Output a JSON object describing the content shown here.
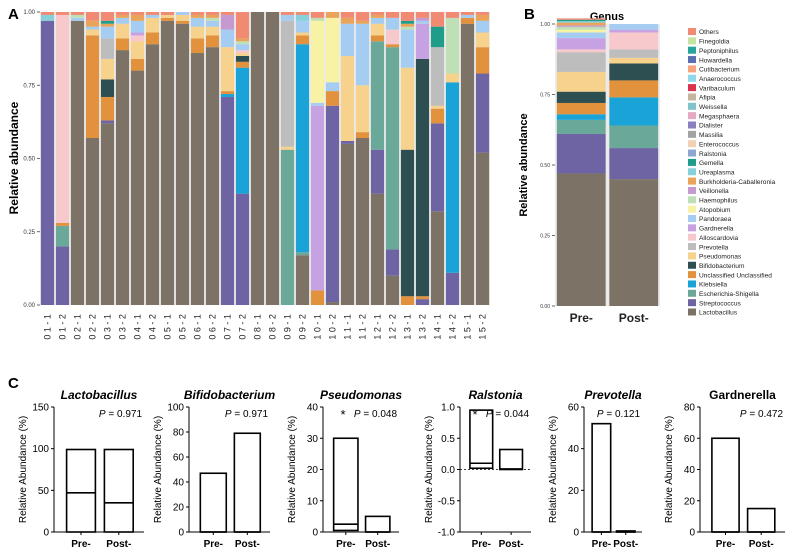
{
  "panels": {
    "a": "A",
    "b": "B",
    "c": "C"
  },
  "genus_palette": [
    {
      "name": "Lactobacillus",
      "color": "#7c7366"
    },
    {
      "name": "Streptococcus",
      "color": "#6e64a3"
    },
    {
      "name": "Escherichia-Shigella",
      "color": "#6aa99a"
    },
    {
      "name": "Klebsiella",
      "color": "#1aa3d6"
    },
    {
      "name": "Unclassified Unclassified",
      "color": "#e2913c"
    },
    {
      "name": "Bifidobacterium",
      "color": "#2d4f52"
    },
    {
      "name": "Pseudomonas",
      "color": "#f6d28c"
    },
    {
      "name": "Prevotella",
      "color": "#bdbdbd"
    },
    {
      "name": "Alloscardovia",
      "color": "#f7c9cc"
    },
    {
      "name": "Gardnerella",
      "color": "#c6a2e3"
    },
    {
      "name": "Pandoraea",
      "color": "#a4cdf1"
    },
    {
      "name": "Atopobium",
      "color": "#f7f2a4"
    },
    {
      "name": "Haemophilus",
      "color": "#bfe0b6"
    },
    {
      "name": "Veillonella",
      "color": "#c59ad1"
    },
    {
      "name": "Burkholderia-Caballeronia",
      "color": "#e9a35a"
    },
    {
      "name": "Ureaplasma",
      "color": "#86d0dc"
    },
    {
      "name": "Gemella",
      "color": "#1f9c8a"
    },
    {
      "name": "Ralstonia",
      "color": "#8fa7cf"
    },
    {
      "name": "Massilia",
      "color": "#a3a3a3"
    },
    {
      "name": "Enterococcus",
      "color": "#f2d0b2"
    },
    {
      "name": "Dialister",
      "color": "#8a7fbf"
    },
    {
      "name": "Megasphaera",
      "color": "#e7a8c4"
    },
    {
      "name": "Weissella",
      "color": "#80c4c9"
    },
    {
      "name": "Afipia",
      "color": "#c4b69e"
    },
    {
      "name": "Varibaculum",
      "color": "#d9344b"
    },
    {
      "name": "Anaerococcus",
      "color": "#8fd9ea"
    },
    {
      "name": "Cutibacterium",
      "color": "#f6a57d"
    },
    {
      "name": "Howardella",
      "color": "#5a6fb0"
    },
    {
      "name": "Peptoniphilus",
      "color": "#26a69a"
    },
    {
      "name": "Finegoldia",
      "color": "#c7e3a1"
    },
    {
      "name": "Others",
      "color": "#f08a72"
    }
  ],
  "chart_data": [
    {
      "type": "stacked-bar",
      "panel": "A",
      "title": "",
      "xlabel": "",
      "ylabel": "Relative abundance",
      "ylim": [
        0,
        1
      ],
      "yticks": [
        "0.00",
        "0.25",
        "0.50",
        "0.75",
        "1.00"
      ],
      "categories": [
        "0 1 - 1",
        "0 1 - 2",
        "0 2 - 1",
        "0 2 - 2",
        "0 3 - 1",
        "0 3 - 2",
        "0 4 - 1",
        "0 4 - 2",
        "0 5 - 1",
        "0 5 - 2",
        "0 6 - 1",
        "0 6 - 2",
        "0 7 - 1",
        "0 7 - 2",
        "0 8 - 1",
        "0 8 - 2",
        "0 9 - 1",
        "0 9 - 2",
        "1 0 - 1",
        "1 0 - 2",
        "1 1 - 1",
        "1 1 - 2",
        "1 2 - 1",
        "1 2 - 2",
        "1 3 - 1",
        "1 3 - 2",
        "1 4 - 1",
        "1 4 - 2",
        "1 5 - 1",
        "1 5 - 2"
      ],
      "stack_order": [
        "Lactobacillus",
        "Streptococcus",
        "Escherichia-Shigella",
        "Klebsiella",
        "Unclassified Unclassified",
        "Bifidobacterium",
        "Pseudomonas",
        "Prevotella",
        "Alloscardovia",
        "Gardnerella",
        "Pandoraea",
        "Atopobium",
        "Haemophilus",
        "Veillonella",
        "Burkholderia-Caballeronia",
        "Ureaplasma",
        "Gemella",
        "Others"
      ],
      "samples": [
        [
          0,
          0.97,
          0,
          0,
          0,
          0,
          0,
          0,
          0,
          0,
          0,
          0,
          0,
          0,
          0,
          0.02,
          0,
          0.01
        ],
        [
          0,
          0.2,
          0.07,
          0,
          0.01,
          0,
          0,
          0,
          0.71,
          0,
          0,
          0,
          0,
          0,
          0,
          0,
          0,
          0.01
        ],
        [
          0.97,
          0,
          0,
          0,
          0,
          0,
          0,
          0,
          0,
          0,
          0.01,
          0,
          0.01,
          0,
          0,
          0,
          0,
          0.01
        ],
        [
          0.57,
          0,
          0,
          0,
          0.35,
          0,
          0.02,
          0,
          0,
          0,
          0.01,
          0,
          0,
          0,
          0.02,
          0,
          0,
          0.03
        ],
        [
          0.62,
          0.01,
          0,
          0,
          0.08,
          0.06,
          0.07,
          0.07,
          0,
          0,
          0.04,
          0,
          0,
          0,
          0.01,
          0,
          0.01,
          0.03
        ],
        [
          0.87,
          0,
          0,
          0,
          0.04,
          0,
          0.05,
          0,
          0,
          0,
          0.02,
          0,
          0,
          0,
          0.01,
          0,
          0,
          0.01
        ],
        [
          0.8,
          0,
          0,
          0,
          0.04,
          0,
          0.06,
          0,
          0.02,
          0.01,
          0.04,
          0,
          0,
          0,
          0.02,
          0,
          0,
          0.01
        ],
        [
          0.89,
          0,
          0,
          0,
          0.04,
          0,
          0.05,
          0,
          0,
          0,
          0.01,
          0,
          0,
          0,
          0,
          0,
          0,
          0.01
        ],
        [
          0.97,
          0,
          0,
          0,
          0.01,
          0,
          0.01,
          0,
          0,
          0,
          0,
          0,
          0,
          0,
          0,
          0,
          0,
          0.01
        ],
        [
          0.96,
          0,
          0,
          0,
          0.01,
          0,
          0.02,
          0,
          0,
          0,
          0.01,
          0,
          0,
          0,
          0,
          0,
          0,
          0
        ],
        [
          0.86,
          0,
          0,
          0,
          0.05,
          0,
          0.04,
          0,
          0,
          0,
          0.03,
          0,
          0,
          0,
          0.01,
          0,
          0,
          0.01
        ],
        [
          0.88,
          0,
          0,
          0,
          0.04,
          0,
          0.03,
          0,
          0,
          0,
          0.02,
          0,
          0.01,
          0,
          0.01,
          0,
          0,
          0.01
        ],
        [
          0,
          0.71,
          0,
          0.01,
          0.01,
          0,
          0.15,
          0,
          0,
          0,
          0.06,
          0,
          0,
          0.05,
          0,
          0,
          0,
          0.01
        ],
        [
          0,
          0.38,
          0,
          0.43,
          0.02,
          0.02,
          0.01,
          0,
          0.01,
          0,
          0.02,
          0,
          0.01,
          0,
          0.01,
          0,
          0,
          0.09
        ],
        [
          1.0,
          0,
          0,
          0,
          0,
          0,
          0,
          0,
          0,
          0,
          0,
          0,
          0,
          0,
          0,
          0,
          0,
          0
        ],
        [
          1.0,
          0,
          0,
          0,
          0,
          0,
          0,
          0,
          0,
          0,
          0,
          0,
          0,
          0,
          0,
          0,
          0,
          0
        ],
        [
          0,
          0,
          0.53,
          0,
          0,
          0,
          0.01,
          0.43,
          0,
          0,
          0.02,
          0,
          0,
          0,
          0,
          0,
          0,
          0.01
        ],
        [
          0.17,
          0,
          0.01,
          0.71,
          0.03,
          0,
          0.01,
          0,
          0,
          0,
          0.04,
          0,
          0,
          0,
          0,
          0.02,
          0,
          0.01
        ],
        [
          0,
          0,
          0,
          0,
          0.05,
          0,
          0,
          0,
          0,
          0.63,
          0.01,
          0.28,
          0.01,
          0,
          0,
          0,
          0,
          0.02
        ],
        [
          0.01,
          0.67,
          0,
          0,
          0.05,
          0,
          0,
          0,
          0,
          0,
          0.03,
          0.22,
          0,
          0,
          0.02,
          0,
          0,
          0
        ],
        [
          0.55,
          0.01,
          0,
          0,
          0,
          0,
          0.29,
          0,
          0,
          0,
          0.11,
          0,
          0,
          0,
          0.02,
          0,
          0,
          0.02
        ],
        [
          0.57,
          0,
          0,
          0,
          0.02,
          0,
          0.16,
          0,
          0,
          0,
          0.21,
          0,
          0,
          0,
          0.01,
          0,
          0,
          0.03
        ],
        [
          0.38,
          0.15,
          0.37,
          0,
          0.02,
          0,
          0.04,
          0,
          0,
          0,
          0.02,
          0,
          0,
          0,
          0.01,
          0,
          0,
          0.01
        ],
        [
          0.1,
          0.09,
          0.69,
          0,
          0.01,
          0,
          0,
          0,
          0.05,
          0,
          0.04,
          0,
          0,
          0,
          0,
          0,
          0,
          0.02
        ],
        [
          0,
          0,
          0,
          0,
          0.03,
          0.5,
          0.28,
          0,
          0,
          0,
          0.13,
          0,
          0.01,
          0,
          0.01,
          0,
          0.01,
          0.03
        ],
        [
          0,
          0.02,
          0,
          0,
          0.01,
          0.81,
          0,
          0,
          0,
          0.12,
          0.01,
          0,
          0,
          0.01,
          0,
          0,
          0,
          0.02
        ],
        [
          0.32,
          0.3,
          0,
          0,
          0.05,
          0,
          0.01,
          0.2,
          0,
          0,
          0,
          0,
          0,
          0,
          0,
          0,
          0.07,
          0.05
        ],
        [
          0,
          0.11,
          0,
          0.65,
          0,
          0,
          0.03,
          0,
          0,
          0,
          0,
          0,
          0.19,
          0,
          0,
          0,
          0,
          0.02
        ],
        [
          0.96,
          0,
          0,
          0,
          0.02,
          0,
          0,
          0,
          0,
          0,
          0.01,
          0,
          0,
          0,
          0,
          0,
          0,
          0.01
        ],
        [
          0.52,
          0.27,
          0,
          0,
          0.09,
          0,
          0.05,
          0,
          0,
          0,
          0.04,
          0,
          0,
          0,
          0.02,
          0,
          0,
          0.01
        ]
      ]
    },
    {
      "type": "stacked-bar",
      "panel": "B",
      "title": "Genus",
      "ylabel": "Relative abundance",
      "ylim": [
        0,
        1
      ],
      "yticks": [
        "0.00",
        "0.25",
        "0.50",
        "0.75",
        "1.00"
      ],
      "categories": [
        "Pre-",
        "Post-"
      ],
      "stack_order": [
        "Lactobacillus",
        "Streptococcus",
        "Escherichia-Shigella",
        "Klebsiella",
        "Unclassified Unclassified",
        "Bifidobacterium",
        "Pseudomonas",
        "Prevotella",
        "Alloscardovia",
        "Gardnerella",
        "Pandoraea",
        "Atopobium",
        "Haemophilus",
        "Veillonella",
        "Burkholderia-Caballeronia",
        "Ureaplasma",
        "Gemella",
        "Others"
      ],
      "samples": [
        [
          0.47,
          0.14,
          0.05,
          0.02,
          0.04,
          0.04,
          0.07,
          0.07,
          0.01,
          0.04,
          0.02,
          0.01,
          0.01,
          0.005,
          0.01,
          0.005,
          0.005,
          0.005
        ],
        [
          0.45,
          0.11,
          0.08,
          0.1,
          0.06,
          0.06,
          0.02,
          0.03,
          0.06,
          0.01,
          0.02,
          0,
          0,
          0,
          0,
          0,
          0,
          0
        ]
      ],
      "legend": [
        "Others",
        "Finegoldia",
        "Peptoniphilus",
        "Howardella",
        "Cutibacterium",
        "Anaerococcus",
        "Varibaculum",
        "Afipia",
        "Weissella",
        "Megasphaera",
        "Dialister",
        "Massilia",
        "Enterococcus",
        "Ralstonia",
        "Gemella",
        "Ureaplasma",
        "Burkholderia-Caballeronia",
        "Veillonella",
        "Haemophilus",
        "Atopobium",
        "Pandoraea",
        "Gardnerella",
        "Alloscardovia",
        "Prevotella",
        "Pseudomonas",
        "Bifidobacterium",
        "Unclassified Unclassified",
        "Klebsiella",
        "Escherichia-Shigella",
        "Streptococcus",
        "Lactobacillus"
      ]
    },
    {
      "type": "floating-bar",
      "panel": "C",
      "title": "Lactobacillus",
      "italic": true,
      "ylabel": "Relative Abundance (%)",
      "ylim": [
        0,
        150
      ],
      "yticks": [
        "0",
        "50",
        "100",
        "150"
      ],
      "categories": [
        "Pre-",
        "Post-"
      ],
      "bars": [
        {
          "min": 0,
          "median": 47,
          "max": 99
        },
        {
          "min": 0,
          "median": 35,
          "max": 99
        }
      ],
      "p_label": "P = 0.971",
      "significant": false
    },
    {
      "type": "floating-bar",
      "panel": "C",
      "title": "Bifidobacterium",
      "italic": true,
      "ylabel": "Relative Abundance (%)",
      "ylim": [
        0,
        100
      ],
      "yticks": [
        "0",
        "20",
        "40",
        "60",
        "80",
        "100"
      ],
      "categories": [
        "Pre-",
        "Post-"
      ],
      "bars": [
        {
          "min": 0,
          "median": 0,
          "max": 47
        },
        {
          "min": 0,
          "median": 0,
          "max": 79
        }
      ],
      "p_label": "P = 0.971",
      "significant": false
    },
    {
      "type": "floating-bar",
      "panel": "C",
      "title": "Pseudomonas",
      "italic": true,
      "ylabel": "Relative Abundance (%)",
      "ylim": [
        0,
        40
      ],
      "yticks": [
        "0",
        "10",
        "20",
        "30",
        "40"
      ],
      "categories": [
        "Pre-",
        "Post-"
      ],
      "bars": [
        {
          "min": 0.5,
          "median": 2.5,
          "max": 30
        },
        {
          "min": 0,
          "median": 0,
          "max": 5
        }
      ],
      "p_label": "P = 0.048",
      "significant": true,
      "star": "*"
    },
    {
      "type": "floating-bar",
      "panel": "C",
      "title": "Ralstonia",
      "italic": true,
      "ylabel": "Relative Abundance (%)",
      "ylim": [
        -1.0,
        1.0
      ],
      "yticks": [
        "-1.0",
        "-0.5",
        "0.0",
        "0.5",
        "1.0"
      ],
      "zero_line": true,
      "categories": [
        "Pre-",
        "Post-"
      ],
      "bars": [
        {
          "min": 0.02,
          "median": 0.1,
          "max": 0.95
        },
        {
          "min": 0,
          "median": 0.01,
          "max": 0.32
        }
      ],
      "p_label": "P = 0.044",
      "significant": true,
      "star": "*"
    },
    {
      "type": "floating-bar",
      "panel": "C",
      "title": "Prevotella",
      "italic": true,
      "ylabel": "Relative Abundance (%)",
      "ylim": [
        0,
        60
      ],
      "yticks": [
        "0",
        "20",
        "40",
        "60"
      ],
      "categories": [
        "Pre-",
        "Post-"
      ],
      "bars": [
        {
          "min": 0,
          "median": 0,
          "max": 52
        },
        {
          "min": 0,
          "median": 0,
          "max": 0.5
        }
      ],
      "p_label": "P = 0.121",
      "significant": false
    },
    {
      "type": "floating-bar",
      "panel": "C",
      "title": "Gardnerella",
      "italic": false,
      "ylabel": "Relative Abundance (%)",
      "ylim": [
        0,
        80
      ],
      "yticks": [
        "0",
        "20",
        "40",
        "60",
        "80"
      ],
      "categories": [
        "Pre-",
        "Post-"
      ],
      "bars": [
        {
          "min": 0,
          "median": 0,
          "max": 60
        },
        {
          "min": 0,
          "median": 0,
          "max": 15
        }
      ],
      "p_label": "P = 0.472",
      "significant": false
    }
  ]
}
